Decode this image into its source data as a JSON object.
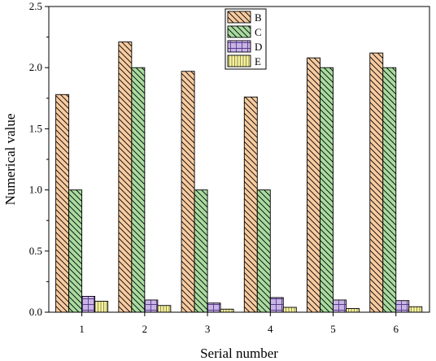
{
  "chart_data": {
    "type": "bar",
    "categories": [
      "1",
      "2",
      "3",
      "4",
      "5",
      "6"
    ],
    "series": [
      {
        "name": "B",
        "values": [
          1.78,
          2.21,
          1.97,
          1.76,
          2.08,
          2.12
        ],
        "color": "#f8cba0",
        "pattern": "hatch-down"
      },
      {
        "name": "C",
        "values": [
          1.0,
          2.0,
          1.0,
          1.0,
          2.0,
          2.0
        ],
        "color": "#a9dca0",
        "pattern": "hatch-down"
      },
      {
        "name": "D",
        "values": [
          0.13,
          0.1,
          0.075,
          0.12,
          0.1,
          0.095
        ],
        "color": "#c8b4e6",
        "pattern": "grid"
      },
      {
        "name": "E",
        "values": [
          0.09,
          0.055,
          0.025,
          0.04,
          0.03,
          0.045
        ],
        "color": "#f4f0a0",
        "pattern": "vertical-lines"
      }
    ],
    "xlabel": "Serial number",
    "ylabel": "Numerical value",
    "ylim": [
      0,
      2.5
    ],
    "yticks": [
      "0.0",
      "0.5",
      "1.0",
      "1.5",
      "2.0",
      "2.5"
    ],
    "legend_position": "top-center",
    "grid": false
  }
}
